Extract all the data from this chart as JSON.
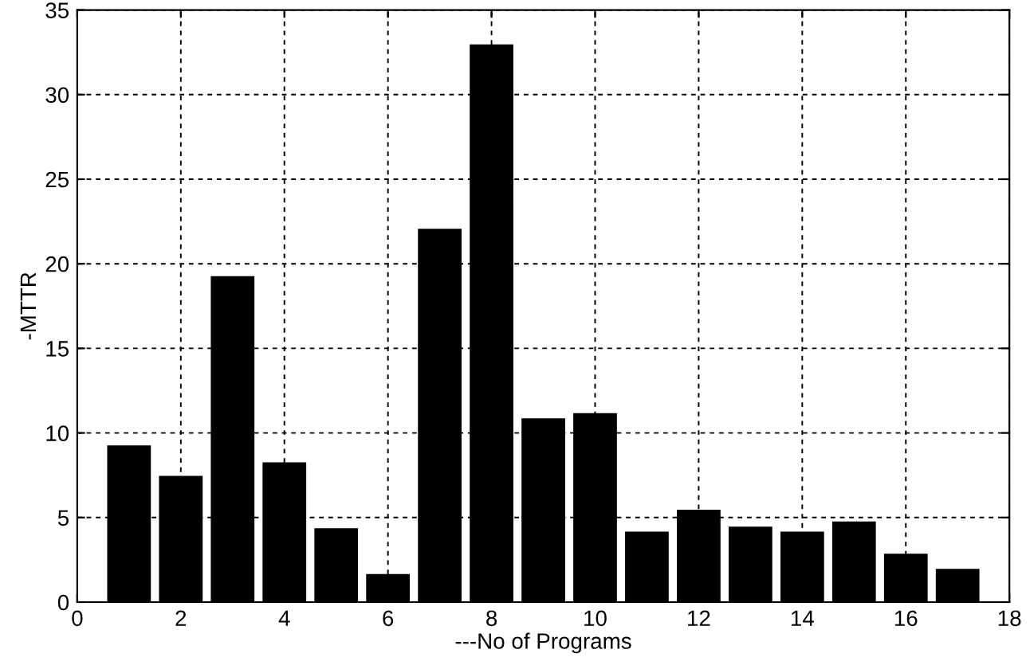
{
  "chart_data": {
    "type": "bar",
    "xlabel": "---No of Programs",
    "ylabel": "-MTTR",
    "x": [
      1,
      2,
      3,
      4,
      5,
      6,
      7,
      8,
      9,
      10,
      11,
      12,
      13,
      14,
      15,
      16,
      17
    ],
    "values": [
      9.2,
      7.4,
      19.2,
      8.2,
      4.3,
      1.6,
      22,
      32.9,
      10.8,
      11.1,
      4.1,
      5.4,
      4.4,
      4.1,
      4.7,
      2.8,
      1.9
    ],
    "color": "#000000",
    "xlim": [
      0,
      18
    ],
    "xticks": [
      0,
      2,
      4,
      6,
      8,
      10,
      12,
      14,
      16,
      18
    ],
    "ylim": [
      0,
      35
    ],
    "yticks": [
      0,
      5,
      10,
      15,
      20,
      25,
      30,
      35
    ],
    "grid": true
  }
}
